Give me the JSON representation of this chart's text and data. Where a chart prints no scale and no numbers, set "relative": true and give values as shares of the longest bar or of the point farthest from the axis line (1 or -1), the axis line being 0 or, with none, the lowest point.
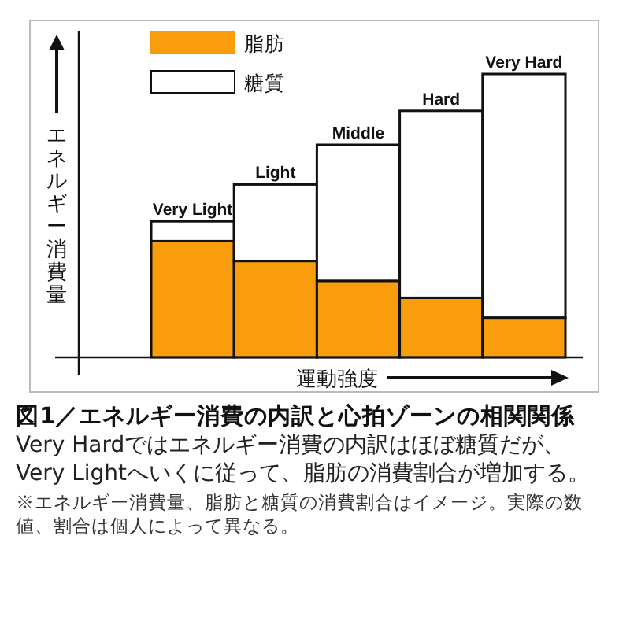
{
  "chart_data": {
    "type": "bar",
    "stacked": true,
    "relative": true,
    "legend": "top left",
    "title": "図1／エネルギー消費の内訳と心拍ゾーンの相関関係",
    "xlabel": "運動強度",
    "ylabel": "エネルギー消費量",
    "categories": [
      "Very Light",
      "Light",
      "Middle",
      "Hard",
      "Very Hard"
    ],
    "series": [
      {
        "name": "脂肪",
        "color": "#f99d0c",
        "values": [
          0.41,
          0.34,
          0.27,
          0.21,
          0.14
        ]
      },
      {
        "name": "糖質",
        "color": "#ffffff",
        "values": [
          0.07,
          0.27,
          0.48,
          0.66,
          0.86
        ]
      }
    ],
    "annotations": [
      "Very Hardではエネルギー消費の内訳はほぼ糖質だが、Very Lightへいくに従って、脂肪の消費割合が増加する。",
      "※エネルギー消費量、脂肪と糖質の消費割合はイメージ。実際の数値、割合は個人によって異なる。"
    ]
  }
}
